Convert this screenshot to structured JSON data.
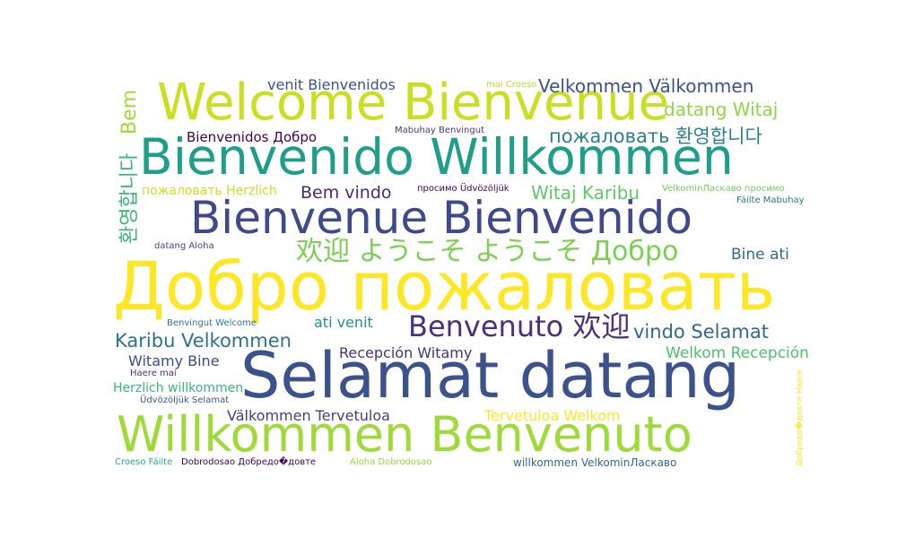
{
  "words": [
    {
      "text": "Добро пожаловать",
      "color": "#fde725"
    },
    {
      "text": "Selamat datang",
      "color": "#3b528b"
    },
    {
      "text": "Willkommen Benvenuto",
      "color": "#a0da39"
    },
    {
      "text": "Welcome Bienvenue",
      "color": "#c8e020"
    },
    {
      "text": "Bienvenido Willkommen",
      "color": "#1f9e89"
    },
    {
      "text": "Bienvenue Bienvenido",
      "color": "#3e4a89"
    },
    {
      "text": "欢迎 ようこそ ようこそ Добро",
      "color": "#7ad151"
    },
    {
      "text": "Benvenuto 欢迎",
      "color": "#46327e"
    },
    {
      "text": "Velkommen Välkommen",
      "color": "#3b528b"
    },
    {
      "text": "datang Witaj",
      "color": "#8fd744"
    },
    {
      "text": "пожаловать 환영합니다",
      "color": "#26828e"
    },
    {
      "text": "Witaj Karibu",
      "color": "#5ec962"
    },
    {
      "text": "Bem vindo",
      "color": "#482878"
    },
    {
      "text": "venit Bienvenidos",
      "color": "#3b528b"
    },
    {
      "text": "Bienvenidos Добро",
      "color": "#440154"
    },
    {
      "text": "пожаловать Herzlich",
      "color": "#c8e020"
    },
    {
      "text": "Bine ati",
      "color": "#31688e"
    },
    {
      "text": "Karibu Velkommen",
      "color": "#2c728e"
    },
    {
      "text": "vindo Selamat",
      "color": "#31688e"
    },
    {
      "text": "Welkom Recepción",
      "color": "#4ac16d"
    },
    {
      "text": "Recepción Witamy",
      "color": "#46327e"
    },
    {
      "text": "ati venit",
      "color": "#21918c"
    },
    {
      "text": "Witamy Bine",
      "color": "#3e4a89"
    },
    {
      "text": "Herzlich willkommen",
      "color": "#35b779"
    },
    {
      "text": "Välkommen Tervetuloa",
      "color": "#433e85"
    },
    {
      "text": "Tervetuloa Welkom",
      "color": "#fde725"
    },
    {
      "text": "Bem",
      "color": "#a0da39"
    },
    {
      "text": "환영합니다",
      "color": "#35b779"
    },
    {
      "text": "Mabuhay Benvingut",
      "color": "#443983"
    },
    {
      "text": "mai Croeso",
      "color": "#b5de2b"
    },
    {
      "text": "просимо Üdvözöljük",
      "color": "#440154"
    },
    {
      "text": "VelkominЛаскаво просимо",
      "color": "#6ece58"
    },
    {
      "text": "Fáilte Mabuhay",
      "color": "#2a788e"
    },
    {
      "text": "datang Aloha",
      "color": "#414487"
    },
    {
      "text": "Benvingut Welcome",
      "color": "#2a788e"
    },
    {
      "text": "Haere mai",
      "color": "#46327e"
    },
    {
      "text": "Üdvözöljük Selamat",
      "color": "#3b528b"
    },
    {
      "text": "Croeso Fáilte",
      "color": "#22a884"
    },
    {
      "text": "Dobrodosao Добредо�довте",
      "color": "#440154"
    },
    {
      "text": "Aloha Dobrodosao",
      "color": "#95d840"
    },
    {
      "text": "willkommen VelkominЛаскаво",
      "color": "#31688e"
    },
    {
      "text": "Добредо�довте Haere",
      "color": "#fde725"
    }
  ]
}
